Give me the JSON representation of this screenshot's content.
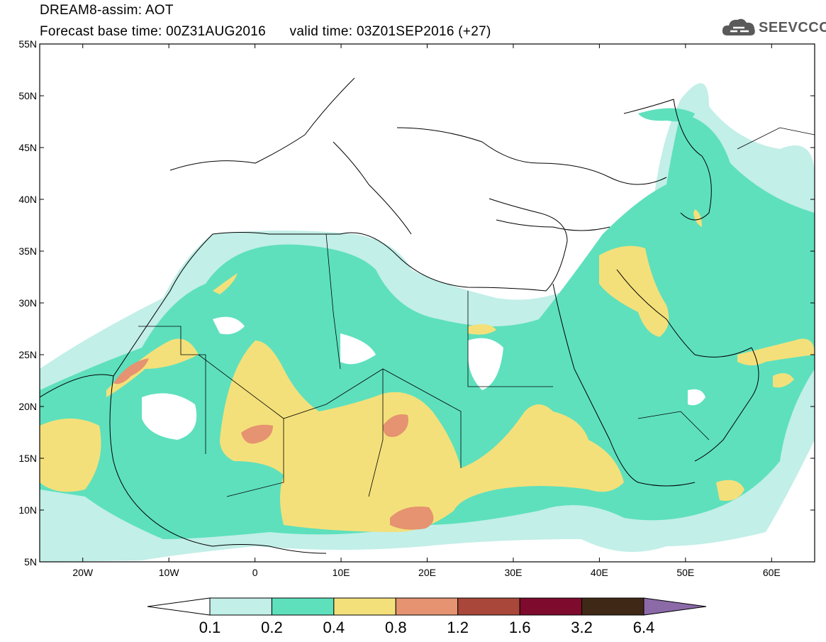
{
  "header": {
    "title": "DREAM8-assim: AOT",
    "base_label": "Forecast base time: 00Z31AUG2016",
    "valid_label": "valid time: 03Z01SEP2016 (+27)"
  },
  "logo": {
    "text": "SEEVCCC",
    "icon": "cloud-icon"
  },
  "map": {
    "lat_labels": [
      "55N",
      "50N",
      "45N",
      "40N",
      "35N",
      "30N",
      "25N",
      "20N",
      "15N",
      "10N",
      "5N"
    ],
    "lon_labels": [
      "20W",
      "10W",
      "0",
      "10E",
      "20E",
      "30E",
      "40E",
      "50E",
      "60E"
    ],
    "extent": {
      "lon": [
        -25,
        65
      ],
      "lat": [
        5,
        55
      ]
    }
  },
  "legend": {
    "labels": [
      "0.1",
      "0.2",
      "0.4",
      "0.8",
      "1.2",
      "1.6",
      "3.2",
      "6.4"
    ],
    "colors": [
      "#ffffff",
      "#c2efe8",
      "#5ee0bd",
      "#f4e07a",
      "#e59370",
      "#a9473a",
      "#7e0a2e",
      "#3f2916",
      "#8c6aa8"
    ]
  }
}
